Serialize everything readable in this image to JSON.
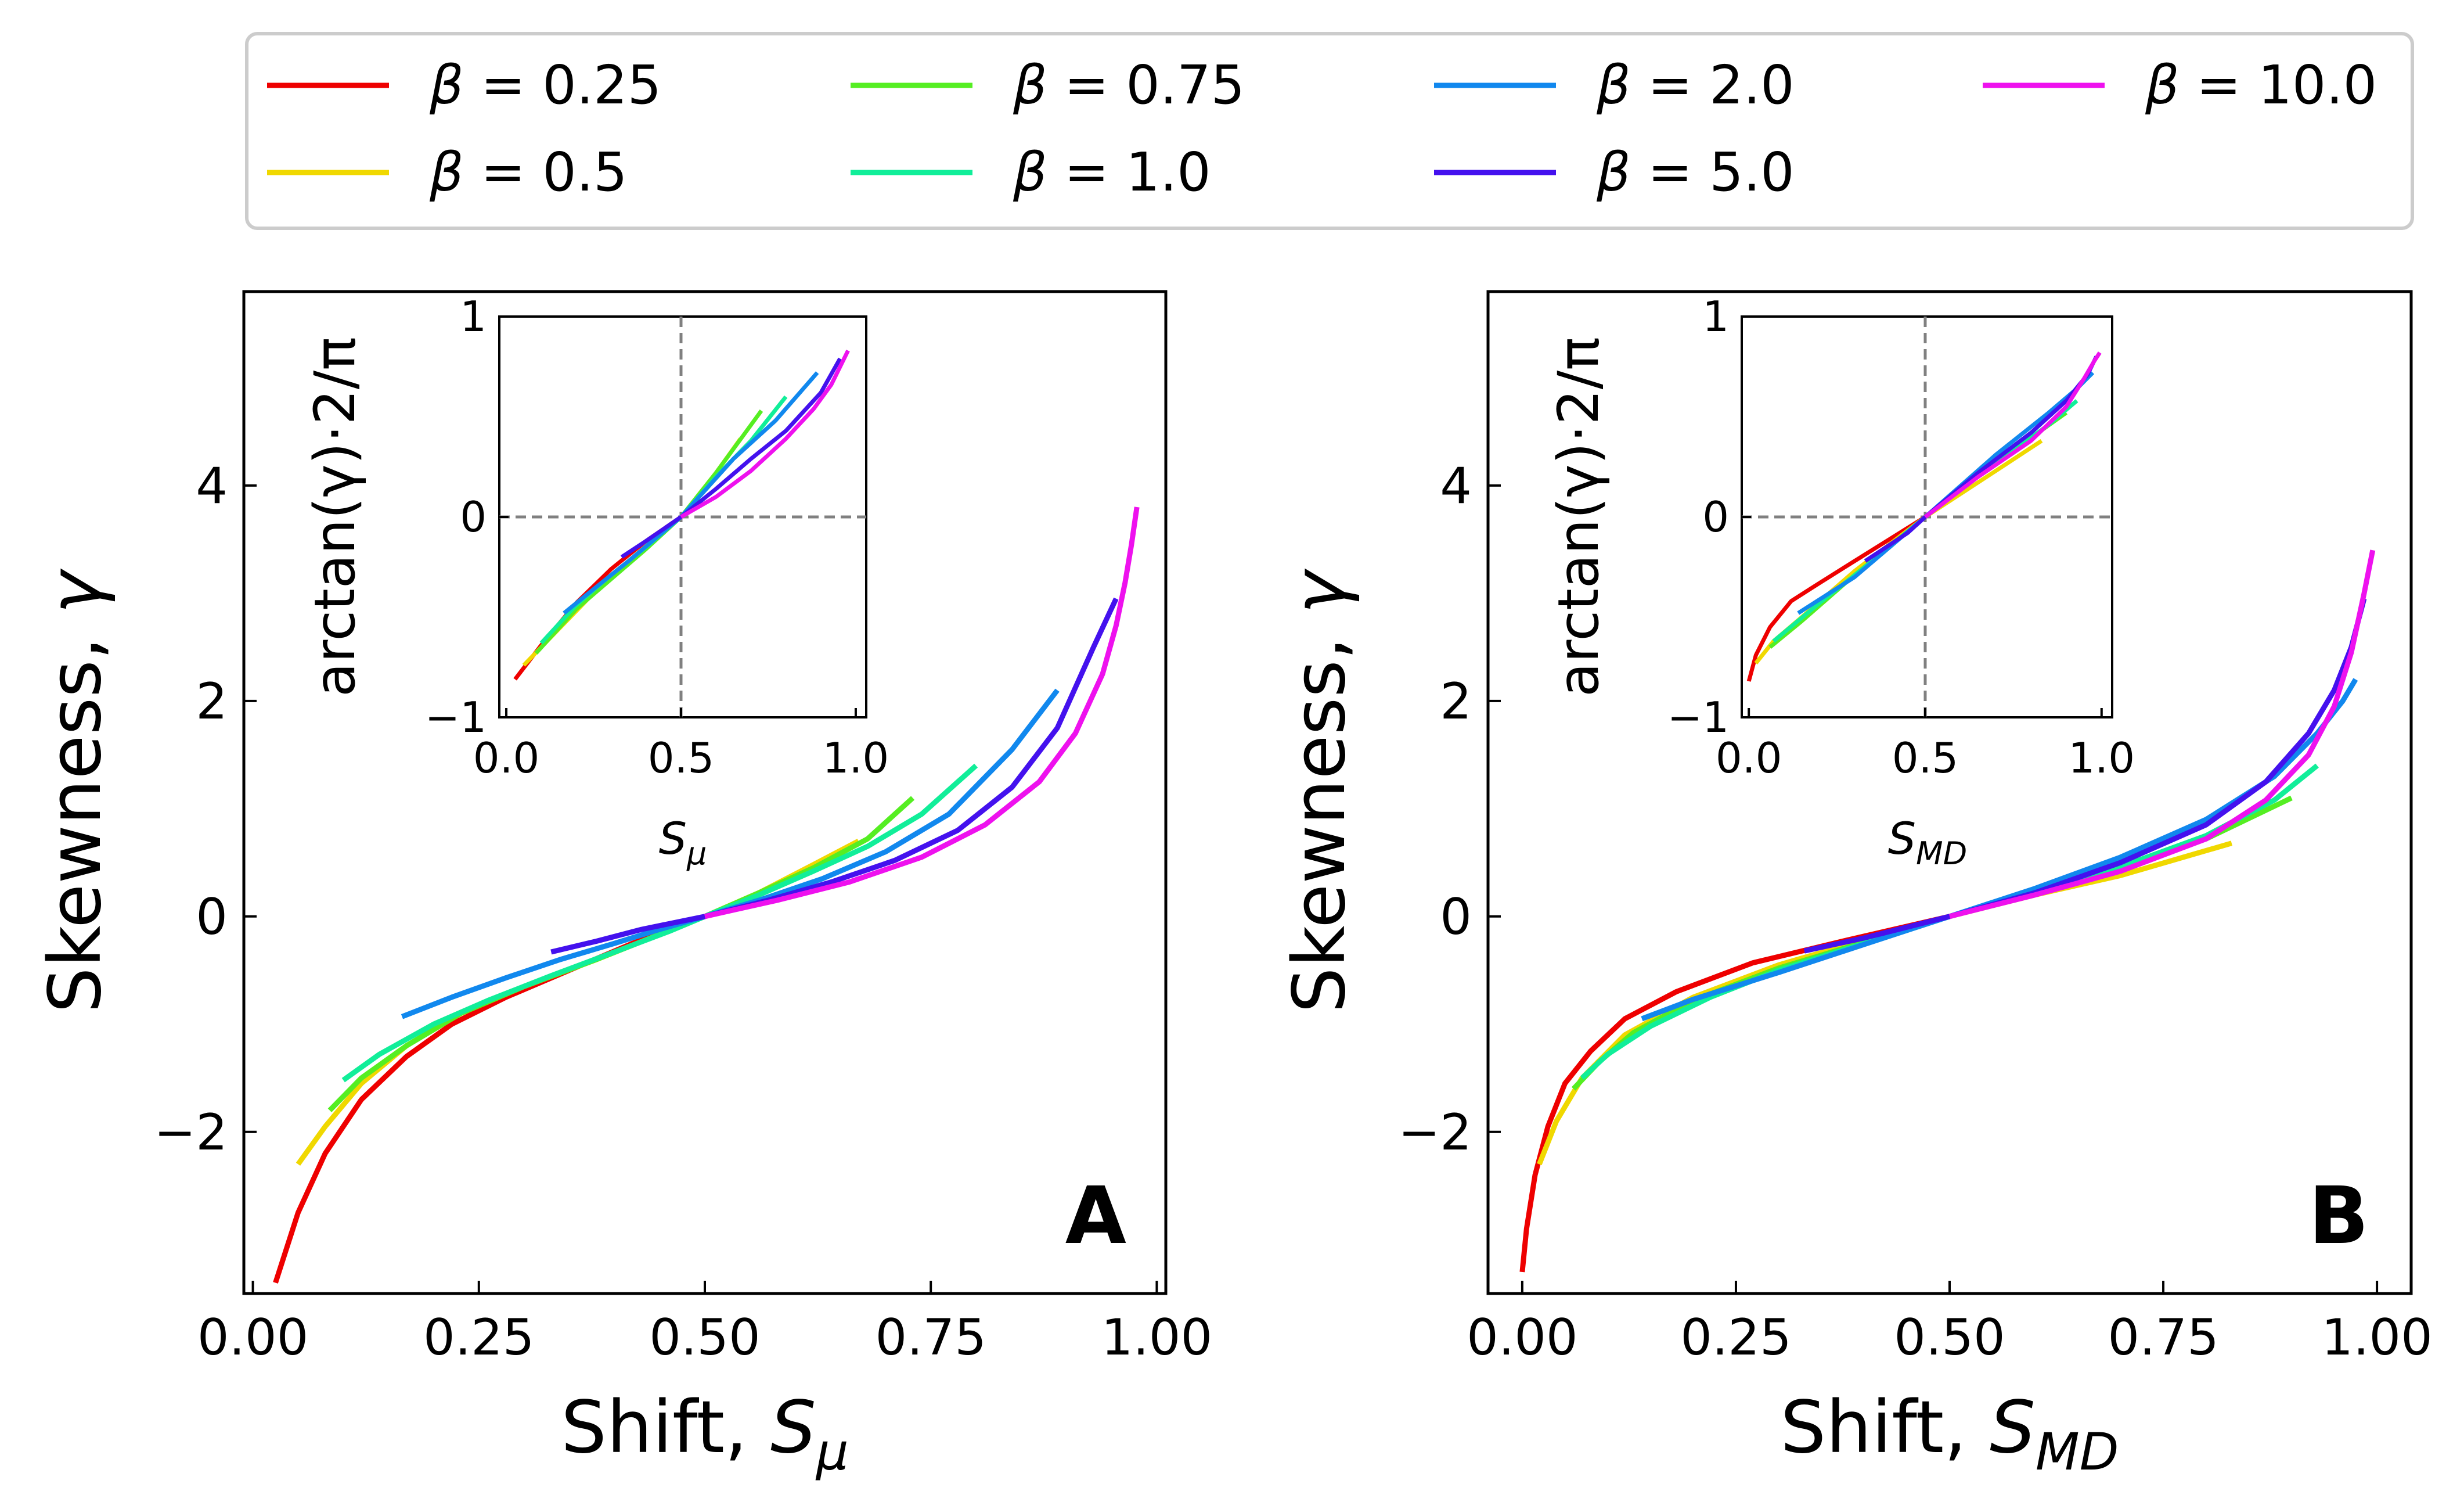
{
  "legend": {
    "prefix": "β = ",
    "entries": [
      {
        "label": "0.25",
        "color": "#ee0000"
      },
      {
        "label": "0.5",
        "color": "#f0d800"
      },
      {
        "label": "0.75",
        "color": "#55ee22"
      },
      {
        "label": "1.0",
        "color": "#11ee99"
      },
      {
        "label": "2.0",
        "color": "#1188ee"
      },
      {
        "label": "5.0",
        "color": "#4411ee"
      },
      {
        "label": "10.0",
        "color": "#ee11ee"
      }
    ]
  },
  "chart_data": [
    {
      "type": "line",
      "panel": "A",
      "ylabel_text": "Skewness, ",
      "ylabel_symbol": "γ",
      "xlabel_text": "Shift, ",
      "xlabel_symbol": "S",
      "xlabel_sub": "μ",
      "xlim": [
        -0.01,
        1.01
      ],
      "ylim": [
        -3.5,
        5.8
      ],
      "xticks": [
        "0.00",
        "0.25",
        "0.50",
        "0.75",
        "1.00"
      ],
      "yticks": [
        "−2",
        "0",
        "2",
        "4"
      ],
      "series": [
        {
          "name": "β = 0.25",
          "x": [
            0.025,
            0.05,
            0.08,
            0.12,
            0.17,
            0.22,
            0.28,
            0.35,
            0.42,
            0.5
          ],
          "y": [
            -3.4,
            -2.75,
            -2.2,
            -1.7,
            -1.3,
            -1.0,
            -0.75,
            -0.5,
            -0.25,
            0.0
          ]
        },
        {
          "name": "β = 0.5",
          "x": [
            0.05,
            0.08,
            0.12,
            0.17,
            0.23,
            0.3,
            0.38,
            0.44,
            0.5,
            0.56,
            0.62,
            0.67
          ],
          "y": [
            -2.3,
            -1.95,
            -1.55,
            -1.2,
            -0.9,
            -0.65,
            -0.4,
            -0.2,
            0.0,
            0.22,
            0.48,
            0.7
          ]
        },
        {
          "name": "β = 0.75",
          "x": [
            0.085,
            0.12,
            0.17,
            0.23,
            0.3,
            0.38,
            0.44,
            0.5,
            0.56,
            0.62,
            0.68,
            0.73
          ],
          "y": [
            -1.8,
            -1.5,
            -1.2,
            -0.9,
            -0.65,
            -0.4,
            -0.2,
            0.0,
            0.22,
            0.45,
            0.72,
            1.1
          ]
        },
        {
          "name": "β = 1.0",
          "x": [
            0.1,
            0.14,
            0.2,
            0.26,
            0.33,
            0.4,
            0.46,
            0.5,
            0.56,
            0.62,
            0.68,
            0.74,
            0.8
          ],
          "y": [
            -1.52,
            -1.28,
            -1.0,
            -0.78,
            -0.55,
            -0.33,
            -0.14,
            0.0,
            0.2,
            0.42,
            0.65,
            0.95,
            1.4
          ]
        },
        {
          "name": "β = 2.0",
          "x": [
            0.165,
            0.22,
            0.28,
            0.34,
            0.4,
            0.45,
            0.5,
            0.56,
            0.63,
            0.7,
            0.77,
            0.84,
            0.89
          ],
          "y": [
            -0.93,
            -0.75,
            -0.57,
            -0.4,
            -0.25,
            -0.12,
            0.0,
            0.15,
            0.35,
            0.6,
            0.95,
            1.55,
            2.1
          ]
        },
        {
          "name": "β = 5.0",
          "x": [
            0.33,
            0.38,
            0.43,
            0.5,
            0.57,
            0.64,
            0.71,
            0.78,
            0.84,
            0.89,
            0.93,
            0.955
          ],
          "y": [
            -0.33,
            -0.23,
            -0.12,
            0.0,
            0.15,
            0.32,
            0.52,
            0.8,
            1.2,
            1.75,
            2.5,
            2.95
          ]
        },
        {
          "name": "β = 10.0",
          "x": [
            0.5,
            0.58,
            0.66,
            0.74,
            0.81,
            0.87,
            0.91,
            0.94,
            0.955,
            0.965,
            0.972,
            0.978
          ],
          "y": [
            0.0,
            0.15,
            0.32,
            0.55,
            0.85,
            1.25,
            1.7,
            2.25,
            2.7,
            3.1,
            3.45,
            3.8
          ]
        }
      ],
      "inset": {
        "xlim": [
          -0.02,
          1.03
        ],
        "ylim": [
          -1.0,
          1.0
        ],
        "xticks": [
          "0.0",
          "0.5",
          "1.0"
        ],
        "yticks": [
          "−1",
          "0",
          "1"
        ],
        "ylabel": "arctan(γ)·2/π",
        "xlabel_symbol": "S",
        "xlabel_sub": "μ",
        "reference_lines": {
          "x": 0.5,
          "y": 0.0
        },
        "series": [
          {
            "name": "β = 0.25",
            "x": [
              0.025,
              0.1,
              0.2,
              0.3,
              0.4,
              0.5
            ],
            "y": [
              -0.81,
              -0.64,
              -0.43,
              -0.26,
              -0.12,
              0.0
            ]
          },
          {
            "name": "β = 0.5",
            "x": [
              0.05,
              0.15,
              0.25,
              0.35,
              0.45,
              0.5,
              0.6,
              0.67
            ],
            "y": [
              -0.74,
              -0.56,
              -0.38,
              -0.22,
              -0.07,
              0.0,
              0.22,
              0.39
            ]
          },
          {
            "name": "β = 0.75",
            "x": [
              0.085,
              0.2,
              0.3,
              0.4,
              0.5,
              0.6,
              0.73
            ],
            "y": [
              -0.68,
              -0.46,
              -0.31,
              -0.16,
              0.0,
              0.22,
              0.53
            ]
          },
          {
            "name": "β = 1.0",
            "x": [
              0.1,
              0.2,
              0.3,
              0.4,
              0.5,
              0.6,
              0.7,
              0.8
            ],
            "y": [
              -0.63,
              -0.44,
              -0.29,
              -0.15,
              0.0,
              0.2,
              0.38,
              0.6
            ]
          },
          {
            "name": "β = 2.0",
            "x": [
              0.165,
              0.25,
              0.35,
              0.5,
              0.65,
              0.77,
              0.89
            ],
            "y": [
              -0.48,
              -0.36,
              -0.22,
              0.0,
              0.29,
              0.48,
              0.72
            ]
          },
          {
            "name": "β = 5.0",
            "x": [
              0.33,
              0.4,
              0.5,
              0.6,
              0.7,
              0.8,
              0.9,
              0.955
            ],
            "y": [
              -0.2,
              -0.12,
              0.0,
              0.14,
              0.29,
              0.43,
              0.62,
              0.79
            ]
          },
          {
            "name": "β = 10.0",
            "x": [
              0.5,
              0.6,
              0.7,
              0.8,
              0.88,
              0.93,
              0.978
            ],
            "y": [
              0.0,
              0.1,
              0.23,
              0.39,
              0.54,
              0.66,
              0.83
            ]
          }
        ]
      }
    },
    {
      "type": "line",
      "panel": "B",
      "ylabel_text": "Skewness, ",
      "ylabel_symbol": "γ",
      "xlabel_text": "Shift, ",
      "xlabel_symbol": "S",
      "xlabel_sub": "MD",
      "xlim": [
        -0.04,
        1.04
      ],
      "ylim": [
        -3.5,
        5.8
      ],
      "xticks": [
        "0.00",
        "0.25",
        "0.50",
        "0.75",
        "1.00"
      ],
      "yticks": [
        "−2",
        "0",
        "2",
        "4"
      ],
      "series": [
        {
          "name": "β = 0.25",
          "x": [
            0.0,
            0.005,
            0.015,
            0.03,
            0.05,
            0.08,
            0.12,
            0.18,
            0.27,
            0.38,
            0.5
          ],
          "y": [
            -3.3,
            -2.9,
            -2.4,
            -1.95,
            -1.55,
            -1.25,
            -0.95,
            -0.7,
            -0.43,
            -0.22,
            0.0
          ]
        },
        {
          "name": "β = 0.5",
          "x": [
            0.02,
            0.04,
            0.07,
            0.12,
            0.2,
            0.3,
            0.4,
            0.5,
            0.6,
            0.7,
            0.83
          ],
          "y": [
            -2.3,
            -1.9,
            -1.5,
            -1.1,
            -0.75,
            -0.45,
            -0.22,
            0.0,
            0.2,
            0.38,
            0.68
          ]
        },
        {
          "name": "β = 0.75",
          "x": [
            0.06,
            0.09,
            0.13,
            0.2,
            0.3,
            0.4,
            0.5,
            0.6,
            0.7,
            0.8,
            0.9
          ],
          "y": [
            -1.6,
            -1.35,
            -1.08,
            -0.78,
            -0.48,
            -0.24,
            0.0,
            0.22,
            0.45,
            0.72,
            1.1
          ]
        },
        {
          "name": "β = 1.0",
          "x": [
            0.07,
            0.1,
            0.15,
            0.22,
            0.3,
            0.4,
            0.5,
            0.6,
            0.7,
            0.8,
            0.88,
            0.93
          ],
          "y": [
            -1.5,
            -1.28,
            -1.02,
            -0.75,
            -0.5,
            -0.25,
            0.0,
            0.22,
            0.46,
            0.75,
            1.08,
            1.4
          ]
        },
        {
          "name": "β = 2.0",
          "x": [
            0.14,
            0.2,
            0.3,
            0.4,
            0.5,
            0.6,
            0.7,
            0.8,
            0.88,
            0.93,
            0.96,
            0.975
          ],
          "y": [
            -0.95,
            -0.77,
            -0.52,
            -0.26,
            0.0,
            0.26,
            0.55,
            0.9,
            1.3,
            1.7,
            2.0,
            2.2
          ]
        },
        {
          "name": "β = 5.0",
          "x": [
            0.33,
            0.4,
            0.5,
            0.6,
            0.7,
            0.8,
            0.87,
            0.92,
            0.95,
            0.97,
            0.985
          ],
          "y": [
            -0.32,
            -0.2,
            0.0,
            0.22,
            0.5,
            0.85,
            1.25,
            1.7,
            2.1,
            2.5,
            2.95
          ]
        },
        {
          "name": "β = 10.0",
          "x": [
            0.5,
            0.6,
            0.7,
            0.8,
            0.87,
            0.92,
            0.95,
            0.97,
            0.985,
            0.995
          ],
          "y": [
            0.0,
            0.2,
            0.42,
            0.72,
            1.08,
            1.5,
            1.95,
            2.45,
            3.0,
            3.4
          ]
        }
      ],
      "inset": {
        "xlim": [
          -0.02,
          1.03
        ],
        "ylim": [
          -1.0,
          1.0
        ],
        "xticks": [
          "0.0",
          "0.5",
          "1.0"
        ],
        "yticks": [
          "−1",
          "0",
          "1"
        ],
        "ylabel": "arctan(γ)·2/π",
        "xlabel_symbol": "S",
        "xlabel_sub": "MD",
        "reference_lines": {
          "x": 0.5,
          "y": 0.0
        },
        "series": [
          {
            "name": "β = 0.25",
            "x": [
              0.0,
              0.02,
              0.06,
              0.12,
              0.2,
              0.3,
              0.4,
              0.5
            ],
            "y": [
              -0.82,
              -0.69,
              -0.55,
              -0.42,
              -0.33,
              -0.22,
              -0.11,
              0.0
            ]
          },
          {
            "name": "β = 0.5",
            "x": [
              0.02,
              0.07,
              0.15,
              0.3,
              0.5,
              0.7,
              0.83
            ],
            "y": [
              -0.73,
              -0.62,
              -0.5,
              -0.27,
              0.0,
              0.23,
              0.38
            ]
          },
          {
            "name": "β = 0.75",
            "x": [
              0.06,
              0.15,
              0.3,
              0.5,
              0.7,
              0.9
            ],
            "y": [
              -0.65,
              -0.52,
              -0.29,
              0.0,
              0.27,
              0.52
            ]
          },
          {
            "name": "β = 1.0",
            "x": [
              0.07,
              0.2,
              0.35,
              0.5,
              0.7,
              0.85,
              0.93
            ],
            "y": [
              -0.62,
              -0.43,
              -0.22,
              0.0,
              0.27,
              0.46,
              0.58
            ]
          },
          {
            "name": "β = 2.0",
            "x": [
              0.14,
              0.3,
              0.5,
              0.7,
              0.85,
              0.93,
              0.975
            ],
            "y": [
              -0.48,
              -0.3,
              0.0,
              0.31,
              0.52,
              0.64,
              0.72
            ]
          },
          {
            "name": "β = 5.0",
            "x": [
              0.33,
              0.45,
              0.5,
              0.65,
              0.8,
              0.9,
              0.96,
              0.985
            ],
            "y": [
              -0.22,
              -0.08,
              0.0,
              0.22,
              0.42,
              0.58,
              0.71,
              0.8
            ]
          },
          {
            "name": "β = 10.0",
            "x": [
              0.5,
              0.65,
              0.8,
              0.9,
              0.95,
              0.98,
              0.995
            ],
            "y": [
              0.0,
              0.2,
              0.38,
              0.55,
              0.69,
              0.78,
              0.82
            ]
          }
        ]
      }
    }
  ]
}
